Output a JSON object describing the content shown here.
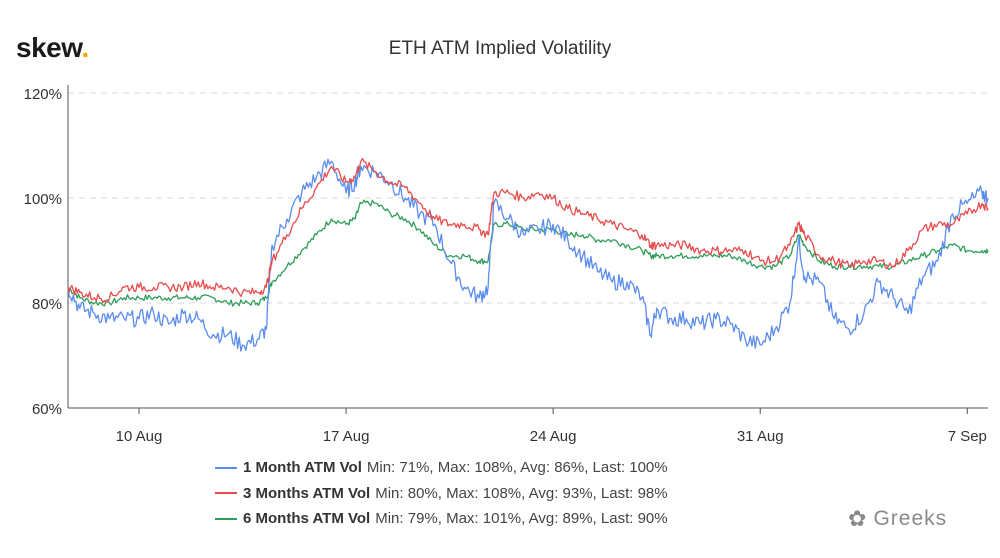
{
  "brand": {
    "name": "skew",
    "dot": "."
  },
  "chart_data": {
    "type": "line",
    "title": "ETH ATM Implied Volatility",
    "xlabel": "",
    "ylabel": "",
    "ylim": [
      60,
      120
    ],
    "yticks": [
      "60%",
      "80%",
      "100%",
      "120%"
    ],
    "yticks_values": [
      60,
      80,
      100,
      120
    ],
    "xlim": [
      7.6,
      38.7
    ],
    "xtick_values": [
      10,
      17,
      24,
      31,
      38
    ],
    "xtick_labels": [
      "10 Aug",
      "17 Aug",
      "24 Aug",
      "31 Aug",
      "7 Sep"
    ],
    "x_unit": "day (1 = 1 Aug)",
    "grid": "horizontal dashed",
    "legend_position": "bottom",
    "series": [
      {
        "name": "1 Month ATM Vol",
        "color": "#5b8def",
        "stats": "Min: 71%, Max: 108%, Avg: 86%, Last: 100%",
        "x": [
          7.6,
          8.0,
          8.5,
          9.0,
          9.5,
          10.0,
          10.5,
          11.0,
          11.5,
          12.0,
          12.5,
          13.0,
          13.5,
          14.0,
          14.3,
          14.5,
          15.0,
          15.5,
          16.0,
          16.5,
          17.0,
          17.3,
          17.5,
          18.0,
          18.5,
          19.0,
          19.5,
          20.0,
          20.5,
          21.0,
          21.5,
          21.8,
          22.0,
          22.5,
          23.0,
          23.5,
          24.0,
          24.5,
          25.0,
          25.5,
          26.0,
          26.5,
          27.0,
          27.3,
          27.5,
          28.0,
          28.5,
          29.0,
          29.5,
          30.0,
          30.5,
          31.0,
          31.5,
          32.0,
          32.3,
          32.5,
          33.0,
          33.5,
          34.0,
          34.5,
          35.0,
          35.5,
          36.0,
          36.5,
          37.0,
          37.5,
          38.0,
          38.5,
          38.7
        ],
        "values": [
          83,
          79,
          78,
          77,
          77,
          77,
          78,
          76,
          78,
          77,
          74,
          74,
          72,
          73,
          75,
          91,
          96,
          101,
          104,
          107,
          101,
          103,
          106,
          105,
          103,
          100,
          97,
          95,
          88,
          83,
          81,
          83,
          99,
          96,
          93,
          94,
          95,
          92,
          89,
          86,
          84,
          84,
          81,
          74,
          79,
          77,
          77,
          76,
          77,
          76,
          73,
          72,
          75,
          80,
          92,
          85,
          84,
          77,
          75,
          78,
          84,
          81,
          78,
          85,
          88,
          97,
          99,
          101,
          100
        ]
      },
      {
        "name": "3 Months ATM Vol",
        "color": "#e84c4c",
        "stats": "Min: 80%, Max: 108%, Avg: 93%, Last: 98%",
        "x": [
          7.6,
          8.0,
          8.5,
          9.0,
          9.5,
          10.0,
          10.5,
          11.0,
          11.5,
          12.0,
          12.5,
          13.0,
          13.5,
          14.0,
          14.3,
          14.5,
          15.0,
          15.5,
          16.0,
          16.5,
          17.0,
          17.3,
          17.5,
          18.0,
          18.5,
          19.0,
          19.5,
          20.0,
          20.5,
          21.0,
          21.5,
          21.8,
          22.0,
          22.5,
          23.0,
          23.5,
          24.0,
          24.5,
          25.0,
          25.5,
          26.0,
          26.5,
          27.0,
          27.3,
          27.5,
          28.0,
          28.5,
          29.0,
          29.5,
          30.0,
          30.5,
          31.0,
          31.5,
          32.0,
          32.3,
          32.5,
          33.0,
          33.5,
          34.0,
          34.5,
          35.0,
          35.5,
          36.0,
          36.5,
          37.0,
          37.5,
          38.0,
          38.5,
          38.7
        ],
        "values": [
          83,
          82,
          81,
          81,
          83,
          83,
          83,
          83,
          83,
          84,
          83,
          83,
          82,
          82,
          83,
          88,
          93,
          98,
          102,
          106,
          103,
          104,
          107,
          105,
          103,
          102,
          99,
          96,
          95,
          95,
          94,
          93,
          101,
          101,
          100,
          101,
          100,
          98,
          97,
          96,
          95,
          94,
          93,
          91,
          91,
          91,
          91,
          90,
          90,
          90,
          90,
          88,
          88,
          91,
          95,
          93,
          89,
          88,
          87,
          88,
          88,
          87,
          90,
          94,
          95,
          95,
          97,
          99,
          98
        ]
      },
      {
        "name": "6 Months ATM Vol",
        "color": "#2f9e5a",
        "stats": "Min: 79%, Max: 101%, Avg: 89%, Last: 90%",
        "x": [
          7.6,
          8.0,
          8.5,
          9.0,
          9.5,
          10.0,
          10.5,
          11.0,
          11.5,
          12.0,
          12.5,
          13.0,
          13.5,
          14.0,
          14.3,
          14.5,
          15.0,
          15.5,
          16.0,
          16.5,
          17.0,
          17.3,
          17.5,
          18.0,
          18.5,
          19.0,
          19.5,
          20.0,
          20.5,
          21.0,
          21.5,
          21.8,
          22.0,
          22.5,
          23.0,
          23.5,
          24.0,
          24.5,
          25.0,
          25.5,
          26.0,
          26.5,
          27.0,
          27.3,
          27.5,
          28.0,
          28.5,
          29.0,
          29.5,
          30.0,
          30.5,
          31.0,
          31.5,
          32.0,
          32.3,
          32.5,
          33.0,
          33.5,
          34.0,
          34.5,
          35.0,
          35.5,
          36.0,
          36.5,
          37.0,
          37.5,
          38.0,
          38.5,
          38.7
        ],
        "values": [
          83,
          81,
          80,
          80,
          81,
          81,
          81,
          81,
          81,
          81,
          81,
          80,
          80,
          80,
          81,
          84,
          87,
          90,
          93,
          96,
          95,
          96,
          99,
          99,
          97,
          96,
          94,
          91,
          89,
          89,
          88,
          88,
          95,
          95,
          94,
          94,
          94,
          93,
          93,
          92,
          92,
          91,
          90,
          89,
          89,
          89,
          89,
          89,
          89,
          89,
          88,
          87,
          87,
          89,
          93,
          91,
          88,
          87,
          87,
          87,
          87,
          87,
          88,
          89,
          90,
          91,
          90,
          90,
          90
        ]
      }
    ]
  },
  "watermark": {
    "icon": "✿",
    "text": "Greeks"
  }
}
